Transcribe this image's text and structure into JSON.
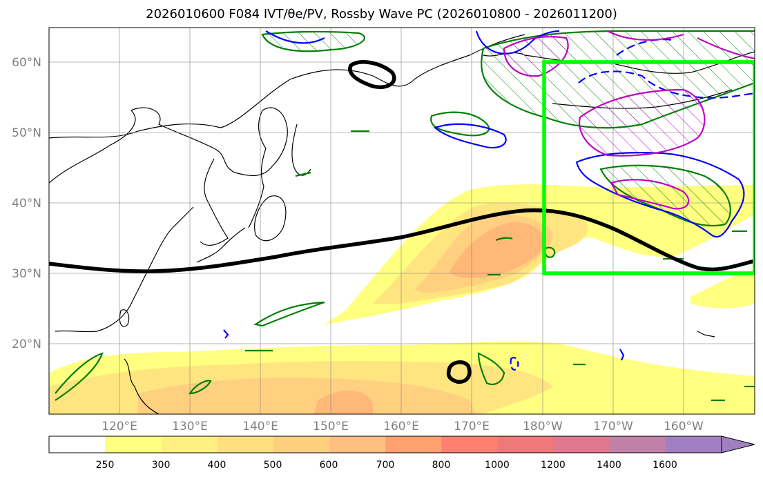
{
  "title": "2026010600 F084 IVT/θe/PV, Rossby Wave PC (2026010800 - 2026011200)",
  "map": {
    "lat_labels": [
      "60°N",
      "50°N",
      "40°N",
      "30°N",
      "20°N"
    ],
    "lon_labels": [
      "120°E",
      "130°E",
      "140°E",
      "150°E",
      "160°E",
      "170°E",
      "180°W",
      "170°W",
      "160°W"
    ],
    "extent": {
      "lon_min": 110,
      "lon_max": 210,
      "lat_min": 10,
      "lat_max": 65
    },
    "highlight_box": {
      "lon_min": 180,
      "lon_max": 210,
      "lat_min": 30,
      "lat_max": 60,
      "color": "#00ff00"
    },
    "contour_colors": {
      "pc_line": "#000000",
      "theta_e": "#008000",
      "pv_blue": "#0000ff",
      "pv_magenta": "#c000c0"
    }
  },
  "colorbar": {
    "levels": [
      "250",
      "300",
      "400",
      "500",
      "600",
      "700",
      "800",
      "1000",
      "1200",
      "1400",
      "1600"
    ],
    "colors": [
      "#ffffff",
      "#ffff80",
      "#ffef80",
      "#ffdf80",
      "#ffcf80",
      "#ffbf80",
      "#ffa070",
      "#ff8070",
      "#f07878",
      "#e07890",
      "#c080a8",
      "#a080c0"
    ]
  }
}
